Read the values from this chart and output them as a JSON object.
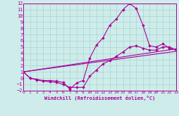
{
  "xlabel": "Windchill (Refroidissement éolien,°C)",
  "xlim": [
    0,
    23
  ],
  "ylim": [
    -2,
    12
  ],
  "xticks": [
    0,
    1,
    2,
    3,
    4,
    5,
    6,
    7,
    8,
    9,
    10,
    11,
    12,
    13,
    14,
    15,
    16,
    17,
    18,
    19,
    20,
    21,
    22,
    23
  ],
  "yticks": [
    -2,
    -1,
    0,
    1,
    2,
    3,
    4,
    5,
    6,
    7,
    8,
    9,
    10,
    11,
    12
  ],
  "bg_color": "#ceecea",
  "grid_color": "#a8d4d0",
  "line_color": "#aa0099",
  "curve_upper_x": [
    0,
    1,
    2,
    3,
    4,
    5,
    6,
    7,
    8,
    9,
    10,
    11,
    12,
    13,
    14,
    15,
    16,
    17,
    18,
    19,
    20,
    21,
    22,
    23
  ],
  "curve_upper_y": [
    1.0,
    0.0,
    -0.2,
    -0.4,
    -0.4,
    -0.5,
    -0.7,
    -1.8,
    -0.8,
    -0.4,
    3.2,
    5.3,
    6.5,
    8.5,
    9.5,
    11.0,
    12.0,
    11.2,
    8.5,
    5.2,
    5.0,
    5.5,
    4.8,
    4.5
  ],
  "curve_lower_x": [
    0,
    1,
    2,
    3,
    4,
    5,
    6,
    7,
    8,
    9,
    10,
    11,
    12,
    13,
    14,
    15,
    16,
    17,
    18,
    19,
    20,
    21,
    22,
    23
  ],
  "curve_lower_y": [
    1.0,
    0.0,
    -0.3,
    -0.5,
    -0.6,
    -0.7,
    -1.0,
    -1.5,
    -1.5,
    -1.5,
    0.3,
    1.3,
    2.3,
    2.8,
    3.5,
    4.2,
    5.0,
    5.2,
    4.8,
    4.5,
    4.5,
    5.0,
    5.0,
    4.5
  ],
  "line1_x": [
    0,
    23
  ],
  "line1_y": [
    1.0,
    4.3
  ],
  "line2_x": [
    0,
    23
  ],
  "line2_y": [
    1.0,
    4.7
  ],
  "lw": 0.8,
  "ms": 2.0
}
